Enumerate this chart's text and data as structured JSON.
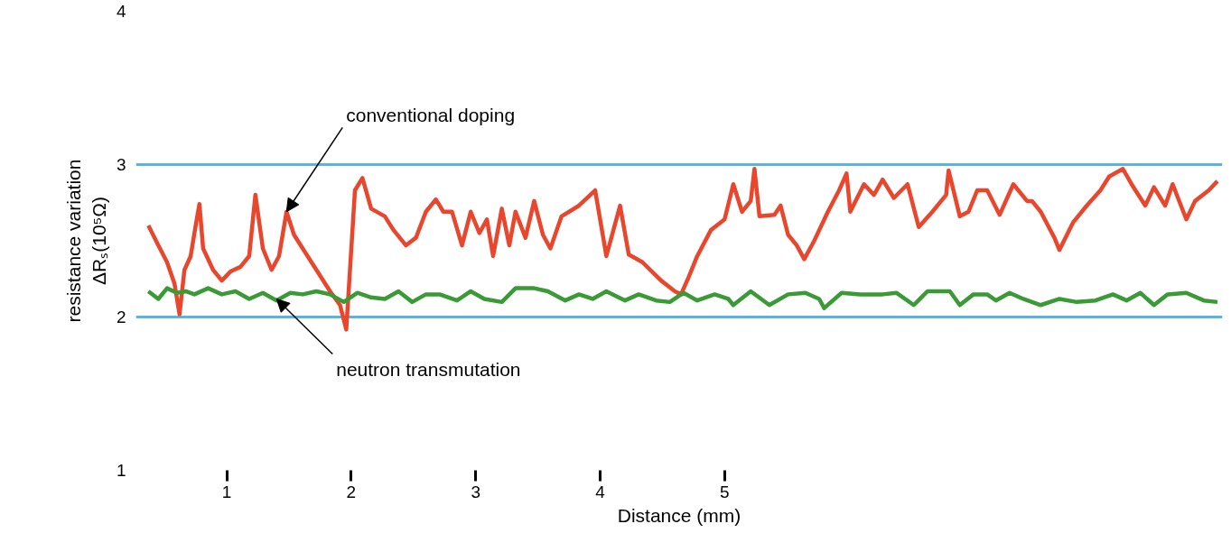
{
  "chart_data": {
    "type": "line",
    "xlabel": "Distance (mm)",
    "ylabel": "resistance variation\nΔRₛ(10⁵Ω)",
    "xlim": [
      0.27,
      9.0
    ],
    "xticks": [
      1,
      2,
      3,
      4,
      5
    ],
    "ylim": [
      1,
      4
    ],
    "yticks": [
      1,
      2,
      3,
      4
    ],
    "grid": "y",
    "marker": "none",
    "line_style": "solid",
    "annotations": [
      {
        "text": "conventional doping",
        "x": 1.48,
        "y": 2.69
      },
      {
        "text": "neutron transmutation",
        "x": 1.4,
        "y": 2.12
      }
    ],
    "series": [
      {
        "color": "#e8472e",
        "x": [
          0.37,
          0.45,
          0.52,
          0.58,
          0.62,
          0.66,
          0.71,
          0.75,
          0.78,
          0.81,
          0.89,
          0.96,
          1.03,
          1.11,
          1.18,
          1.23,
          1.29,
          1.36,
          1.42,
          1.48,
          1.54,
          1.61,
          1.72,
          1.83,
          1.91,
          1.96,
          2.03,
          2.09,
          2.16,
          2.27,
          2.34,
          2.44,
          2.52,
          2.6,
          2.68,
          2.74,
          2.81,
          2.89,
          2.96,
          3.03,
          3.09,
          3.14,
          3.21,
          3.27,
          3.32,
          3.4,
          3.47,
          3.54,
          3.6,
          3.69,
          3.83,
          3.96,
          4.05,
          4.16,
          4.23,
          4.34,
          4.49,
          4.6,
          4.65,
          4.71,
          4.78,
          4.89,
          5.0,
          5.07,
          5.14,
          5.21,
          5.24,
          5.28,
          5.4,
          5.45,
          5.51,
          5.58,
          5.64,
          5.72,
          5.83,
          5.92,
          5.98,
          6.01,
          6.12,
          6.2,
          6.27,
          6.36,
          6.47,
          6.56,
          6.67,
          6.78,
          6.8,
          6.89,
          6.96,
          7.03,
          7.11,
          7.21,
          7.32,
          7.43,
          7.47,
          7.54,
          7.65,
          7.69,
          7.8,
          7.91,
          8.02,
          8.09,
          8.2,
          8.27,
          8.38,
          8.45,
          8.54,
          8.6,
          8.71,
          8.78,
          8.89,
          8.96
        ],
        "values": [
          2.6,
          2.47,
          2.36,
          2.22,
          2.02,
          2.31,
          2.4,
          2.6,
          2.74,
          2.45,
          2.31,
          2.24,
          2.3,
          2.33,
          2.4,
          2.8,
          2.45,
          2.31,
          2.4,
          2.69,
          2.54,
          2.45,
          2.31,
          2.17,
          2.08,
          1.92,
          2.83,
          2.91,
          2.71,
          2.66,
          2.57,
          2.47,
          2.52,
          2.69,
          2.77,
          2.69,
          2.69,
          2.47,
          2.69,
          2.55,
          2.64,
          2.4,
          2.71,
          2.47,
          2.69,
          2.52,
          2.76,
          2.54,
          2.45,
          2.66,
          2.73,
          2.83,
          2.4,
          2.73,
          2.41,
          2.36,
          2.24,
          2.17,
          2.15,
          2.26,
          2.4,
          2.57,
          2.64,
          2.87,
          2.69,
          2.76,
          2.97,
          2.66,
          2.67,
          2.73,
          2.54,
          2.47,
          2.38,
          2.5,
          2.69,
          2.83,
          2.94,
          2.69,
          2.87,
          2.8,
          2.9,
          2.78,
          2.87,
          2.59,
          2.69,
          2.8,
          2.96,
          2.66,
          2.69,
          2.83,
          2.83,
          2.67,
          2.87,
          2.76,
          2.76,
          2.69,
          2.52,
          2.44,
          2.62,
          2.73,
          2.83,
          2.92,
          2.97,
          2.87,
          2.73,
          2.85,
          2.73,
          2.87,
          2.64,
          2.76,
          2.83,
          2.89
        ]
      },
      {
        "color": "#3a9a35",
        "x": [
          0.37,
          0.45,
          0.52,
          0.6,
          0.67,
          0.74,
          0.85,
          0.96,
          1.07,
          1.18,
          1.29,
          1.4,
          1.51,
          1.61,
          1.72,
          1.83,
          1.94,
          2.05,
          2.16,
          2.27,
          2.38,
          2.49,
          2.6,
          2.71,
          2.85,
          2.96,
          3.07,
          3.21,
          3.32,
          3.47,
          3.58,
          3.72,
          3.83,
          3.94,
          4.05,
          4.2,
          4.31,
          4.45,
          4.56,
          4.67,
          4.78,
          4.92,
          5.03,
          5.07,
          5.21,
          5.36,
          5.51,
          5.65,
          5.76,
          5.8,
          5.94,
          6.09,
          6.27,
          6.38,
          6.52,
          6.63,
          6.81,
          6.89,
          7.0,
          7.11,
          7.18,
          7.29,
          7.4,
          7.54,
          7.69,
          7.83,
          7.98,
          8.12,
          8.23,
          8.34,
          8.45,
          8.56,
          8.71,
          8.85,
          8.96
        ],
        "values": [
          2.17,
          2.12,
          2.19,
          2.16,
          2.17,
          2.15,
          2.19,
          2.15,
          2.17,
          2.12,
          2.16,
          2.11,
          2.16,
          2.15,
          2.17,
          2.15,
          2.1,
          2.16,
          2.13,
          2.12,
          2.17,
          2.1,
          2.15,
          2.15,
          2.11,
          2.17,
          2.12,
          2.1,
          2.19,
          2.19,
          2.17,
          2.11,
          2.15,
          2.12,
          2.17,
          2.11,
          2.15,
          2.11,
          2.1,
          2.16,
          2.11,
          2.15,
          2.12,
          2.08,
          2.17,
          2.08,
          2.15,
          2.16,
          2.12,
          2.06,
          2.16,
          2.15,
          2.15,
          2.16,
          2.08,
          2.17,
          2.17,
          2.08,
          2.15,
          2.15,
          2.11,
          2.16,
          2.12,
          2.08,
          2.12,
          2.1,
          2.11,
          2.15,
          2.11,
          2.16,
          2.08,
          2.15,
          2.16,
          2.11,
          2.1
        ]
      }
    ]
  }
}
